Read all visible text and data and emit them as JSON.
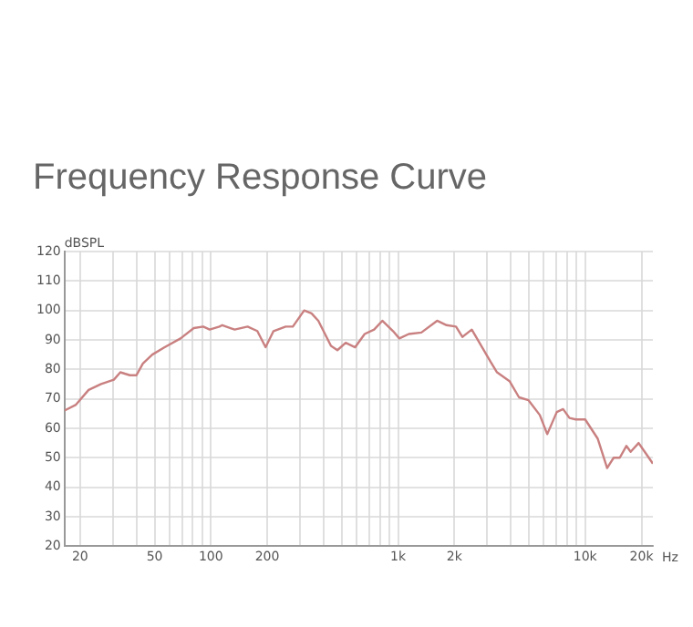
{
  "chart_data": {
    "type": "line",
    "title": "Frequency Response Curve",
    "xlabel": "Hz",
    "ylabel": "dBSPL",
    "log": "x",
    "grid": true,
    "legend": false,
    "marker": "none",
    "line_style": "solid",
    "xlim": [
      16.5,
      23000
    ],
    "ylim": [
      20,
      120
    ],
    "xticks": [
      {
        "value": 20,
        "label": "20"
      },
      {
        "value": 30,
        "label": null
      },
      {
        "value": 40,
        "label": null
      },
      {
        "value": 50,
        "label": "50"
      },
      {
        "value": 60,
        "label": null
      },
      {
        "value": 70,
        "label": null
      },
      {
        "value": 80,
        "label": null
      },
      {
        "value": 90,
        "label": null
      },
      {
        "value": 100,
        "label": "100"
      },
      {
        "value": 200,
        "label": "200"
      },
      {
        "value": 300,
        "label": null
      },
      {
        "value": 400,
        "label": null
      },
      {
        "value": 500,
        "label": null
      },
      {
        "value": 600,
        "label": null
      },
      {
        "value": 700,
        "label": null
      },
      {
        "value": 800,
        "label": null
      },
      {
        "value": 900,
        "label": null
      },
      {
        "value": 1000,
        "label": "1k"
      },
      {
        "value": 2000,
        "label": "2k"
      },
      {
        "value": 3000,
        "label": null
      },
      {
        "value": 4000,
        "label": null
      },
      {
        "value": 5000,
        "label": null
      },
      {
        "value": 6000,
        "label": null
      },
      {
        "value": 7000,
        "label": null
      },
      {
        "value": 8000,
        "label": null
      },
      {
        "value": 9000,
        "label": null
      },
      {
        "value": 10000,
        "label": "10k"
      },
      {
        "value": 20000,
        "label": "20k"
      }
    ],
    "yticks": [
      20,
      30,
      40,
      50,
      60,
      70,
      80,
      90,
      100,
      110,
      120
    ],
    "x": [
      16.5,
      19,
      22.2,
      25.9,
      30.3,
      32.8,
      36.9,
      40,
      43.3,
      48.6,
      56.6,
      68.8,
      81,
      91,
      98.5,
      111,
      115,
      134,
      157,
      177,
      196,
      216,
      251,
      274,
      315,
      345,
      375,
      438,
      474,
      525,
      590,
      663,
      745,
      824,
      940,
      1016,
      1141,
      1332,
      1617,
      1816,
      2040,
      2206,
      2477,
      3125,
      3380,
      3940,
      4430,
      4980,
      5720,
      6270,
      7050,
      7620,
      8240,
      8900,
      10000,
      11660,
      13100,
      14200,
      15300,
      16600,
      17500,
      19300,
      20800,
      23000
    ],
    "series": [
      {
        "color": "#c98080",
        "values": [
          66,
          68,
          73,
          75,
          76.5,
          79,
          78,
          78,
          82,
          85,
          87.5,
          90.5,
          94,
          94.5,
          93.5,
          94.5,
          95,
          93.5,
          94.5,
          93,
          87.5,
          93,
          94.5,
          94.5,
          100,
          99,
          96.5,
          88,
          86.5,
          89,
          87.5,
          92,
          93.5,
          96.5,
          93,
          90.5,
          92,
          92.5,
          96.5,
          95,
          94.5,
          91,
          93.5,
          82.5,
          79,
          76,
          70.5,
          69.5,
          64.5,
          58,
          65.5,
          66.5,
          63.5,
          63,
          63,
          56.5,
          46.5,
          50,
          50,
          54,
          52,
          55,
          52,
          48
        ]
      }
    ]
  }
}
